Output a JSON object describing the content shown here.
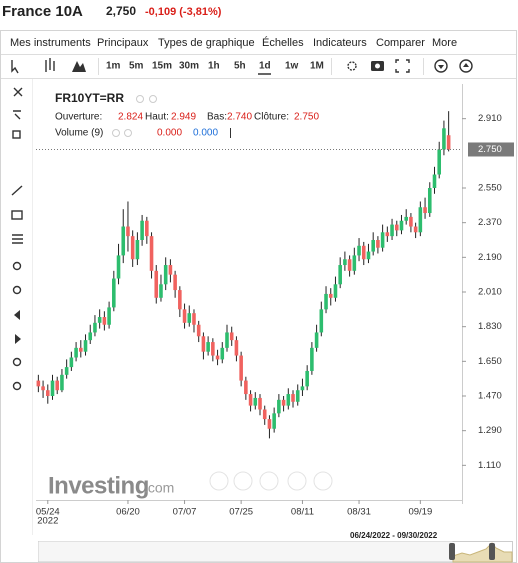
{
  "header": {
    "title": "France 10A",
    "last": "2,750",
    "change": "-0,109 (-3,81%)"
  },
  "menu": [
    "Mes instruments",
    "Principaux",
    "Types de graphique",
    "Échelles",
    "Indicateurs",
    "Comparer",
    "More"
  ],
  "timeframes": [
    "1m",
    "5m",
    "15m",
    "30m",
    "1h",
    "5h",
    "1d",
    "1w",
    "1M"
  ],
  "legend": {
    "symbol": "FR10YT=RR",
    "fields": [
      {
        "label": "Ouverture:",
        "value": "2.824"
      },
      {
        "label": "Haut:",
        "value": "2.949"
      },
      {
        "label": "Bas:",
        "value": "2.740"
      },
      {
        "label": "Clôture:",
        "value": "2.750"
      }
    ],
    "volume": "Volume (9)",
    "volume_values": [
      "0.000",
      "0.000"
    ]
  },
  "watermark": [
    "Investing",
    ".com"
  ],
  "navigator_range": "06/24/2022 - 09/30/2022",
  "chart": {
    "type": "candlestick",
    "up_color": "#2dbd6e",
    "down_color": "#f0625f",
    "categories": [
      null,
      null,
      "05/24",
      null,
      null,
      null,
      null,
      null,
      null,
      null,
      null,
      null,
      null,
      null,
      null,
      null,
      null,
      null,
      null,
      "06/20",
      null,
      null,
      null,
      null,
      null,
      null,
      null,
      null,
      null,
      null,
      null,
      "07/07",
      null,
      null,
      null,
      null,
      null,
      null,
      null,
      null,
      null,
      null,
      null,
      "07/25",
      null,
      null,
      null,
      null,
      null,
      null,
      null,
      null,
      null,
      null,
      null,
      null,
      "08/11",
      null,
      null,
      null,
      null,
      null,
      null,
      null,
      null,
      null,
      null,
      null,
      "08/31",
      null,
      null,
      null,
      null,
      null,
      null,
      null,
      null,
      null,
      null,
      null,
      null,
      "09/19",
      null,
      null,
      null,
      null,
      null,
      null
    ],
    "year": "2022",
    "open": [
      1.55,
      1.52,
      1.5,
      1.47,
      1.55,
      1.5,
      1.58,
      1.62,
      1.67,
      1.72,
      1.7,
      1.76,
      1.8,
      1.85,
      1.88,
      1.84,
      1.93,
      2.08,
      2.2,
      2.35,
      2.3,
      2.18,
      2.28,
      2.38,
      2.3,
      2.12,
      1.98,
      2.05,
      2.15,
      2.1,
      2.02,
      1.92,
      1.85,
      1.9,
      1.84,
      1.78,
      1.7,
      1.75,
      1.68,
      1.66,
      1.72,
      1.8,
      1.76,
      1.68,
      1.55,
      1.48,
      1.42,
      1.46,
      1.4,
      1.35,
      1.3,
      1.38,
      1.45,
      1.42,
      1.48,
      1.44,
      1.5,
      1.52,
      1.6,
      1.72,
      1.8,
      1.92,
      2.0,
      1.98,
      2.05,
      2.15,
      2.18,
      2.12,
      2.2,
      2.25,
      2.18,
      2.22,
      2.28,
      2.24,
      2.32,
      2.3,
      2.36,
      2.33,
      2.38,
      2.4,
      2.35,
      2.32,
      2.45,
      2.42,
      2.55,
      2.62,
      2.75,
      2.824
    ],
    "high": [
      1.58,
      1.55,
      1.53,
      1.58,
      1.57,
      1.61,
      1.66,
      1.7,
      1.75,
      1.76,
      1.79,
      1.84,
      1.89,
      1.92,
      1.91,
      1.96,
      2.12,
      2.26,
      2.44,
      2.48,
      2.33,
      2.32,
      2.41,
      2.4,
      2.32,
      2.15,
      2.1,
      2.19,
      2.18,
      2.12,
      2.04,
      1.95,
      1.94,
      1.92,
      1.86,
      1.8,
      1.78,
      1.77,
      1.71,
      1.75,
      1.84,
      1.83,
      1.78,
      1.7,
      1.57,
      1.5,
      1.49,
      1.48,
      1.42,
      1.37,
      1.41,
      1.48,
      1.47,
      1.51,
      1.5,
      1.53,
      1.56,
      1.63,
      1.75,
      1.84,
      1.96,
      2.04,
      2.03,
      2.09,
      2.19,
      2.22,
      2.2,
      2.24,
      2.29,
      2.27,
      2.26,
      2.32,
      2.3,
      2.36,
      2.35,
      2.39,
      2.38,
      2.41,
      2.44,
      2.42,
      2.37,
      2.48,
      2.5,
      2.58,
      2.66,
      2.79,
      2.9,
      2.949
    ],
    "low": [
      1.49,
      1.46,
      1.43,
      1.45,
      1.48,
      1.49,
      1.56,
      1.6,
      1.65,
      1.67,
      1.68,
      1.74,
      1.78,
      1.82,
      1.81,
      1.82,
      1.91,
      2.05,
      2.16,
      2.22,
      2.14,
      2.15,
      2.25,
      2.26,
      2.08,
      1.95,
      1.96,
      2.02,
      2.06,
      1.98,
      1.88,
      1.82,
      1.83,
      1.8,
      1.75,
      1.66,
      1.68,
      1.65,
      1.63,
      1.64,
      1.7,
      1.73,
      1.65,
      1.52,
      1.45,
      1.39,
      1.4,
      1.37,
      1.32,
      1.25,
      1.28,
      1.36,
      1.39,
      1.4,
      1.41,
      1.42,
      1.47,
      1.5,
      1.58,
      1.7,
      1.78,
      1.9,
      1.94,
      1.96,
      2.03,
      2.12,
      2.09,
      2.1,
      2.17,
      2.15,
      2.16,
      2.2,
      2.21,
      2.22,
      2.27,
      2.28,
      2.3,
      2.31,
      2.36,
      2.32,
      2.29,
      2.3,
      2.39,
      2.4,
      2.52,
      2.6,
      2.72,
      2.74
    ],
    "close": [
      1.52,
      1.5,
      1.47,
      1.55,
      1.5,
      1.58,
      1.62,
      1.67,
      1.72,
      1.7,
      1.76,
      1.8,
      1.85,
      1.88,
      1.84,
      1.93,
      2.08,
      2.2,
      2.35,
      2.3,
      2.18,
      2.28,
      2.38,
      2.3,
      2.12,
      1.98,
      2.05,
      2.15,
      2.1,
      2.02,
      1.92,
      1.85,
      1.9,
      1.84,
      1.78,
      1.7,
      1.75,
      1.68,
      1.66,
      1.72,
      1.8,
      1.76,
      1.68,
      1.55,
      1.48,
      1.42,
      1.46,
      1.4,
      1.35,
      1.3,
      1.38,
      1.45,
      1.42,
      1.48,
      1.44,
      1.5,
      1.52,
      1.6,
      1.72,
      1.8,
      1.92,
      2.0,
      1.98,
      2.05,
      2.15,
      2.18,
      2.12,
      2.2,
      2.25,
      2.18,
      2.22,
      2.28,
      2.24,
      2.32,
      2.3,
      2.36,
      2.33,
      2.38,
      2.4,
      2.35,
      2.32,
      2.45,
      2.42,
      2.55,
      2.62,
      2.75,
      2.86,
      2.75
    ],
    "last_price": {
      "value": 2.75,
      "label": "2.750"
    },
    "ylim": [
      0.93,
      3.09
    ],
    "yticks": [
      {
        "value": 2.91,
        "label": "2.910"
      },
      {
        "value": 2.55,
        "label": "2.550"
      },
      {
        "value": 2.37,
        "label": "2.370"
      },
      {
        "value": 2.19,
        "label": "2.190"
      },
      {
        "value": 2.01,
        "label": "2.010"
      },
      {
        "value": 1.83,
        "label": "1.830"
      },
      {
        "value": 1.65,
        "label": "1.650"
      },
      {
        "value": 1.47,
        "label": "1.470"
      },
      {
        "value": 1.29,
        "label": "1.290"
      },
      {
        "value": 1.11,
        "label": "1.110"
      }
    ]
  }
}
